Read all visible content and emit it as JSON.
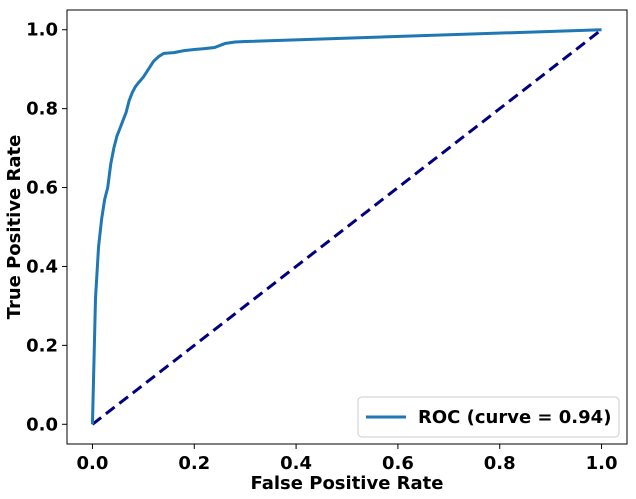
{
  "chart_data": {
    "type": "line",
    "xlabel": "False Positive Rate",
    "ylabel": "True Positive Rate",
    "xlim": [
      -0.05,
      1.05
    ],
    "ylim": [
      -0.05,
      1.05
    ],
    "xticks": [
      "0.0",
      "0.2",
      "0.4",
      "0.6",
      "0.8",
      "1.0"
    ],
    "yticks": [
      "0.0",
      "0.2",
      "0.4",
      "0.6",
      "0.8",
      "1.0"
    ],
    "grid": false,
    "legend_position": "lower-right",
    "series": [
      {
        "name": "ROC (curve = 0.94)",
        "color": "#1f77b4",
        "style": "solid",
        "x": [
          0.0,
          0.006,
          0.012,
          0.018,
          0.024,
          0.03,
          0.036,
          0.042,
          0.048,
          0.054,
          0.06,
          0.066,
          0.072,
          0.078,
          0.084,
          0.09,
          0.1,
          0.11,
          0.12,
          0.13,
          0.14,
          0.16,
          0.18,
          0.2,
          0.22,
          0.24,
          0.26,
          0.28,
          0.3,
          1.0
        ],
        "y": [
          0.0,
          0.32,
          0.45,
          0.52,
          0.57,
          0.6,
          0.66,
          0.7,
          0.73,
          0.75,
          0.77,
          0.79,
          0.82,
          0.84,
          0.855,
          0.865,
          0.88,
          0.9,
          0.92,
          0.932,
          0.94,
          0.942,
          0.947,
          0.95,
          0.952,
          0.955,
          0.965,
          0.969,
          0.97,
          1.0
        ]
      },
      {
        "name": "",
        "color": "#000080",
        "style": "dashed",
        "x": [
          0.0,
          1.0
        ],
        "y": [
          0.0,
          1.0
        ]
      }
    ]
  }
}
